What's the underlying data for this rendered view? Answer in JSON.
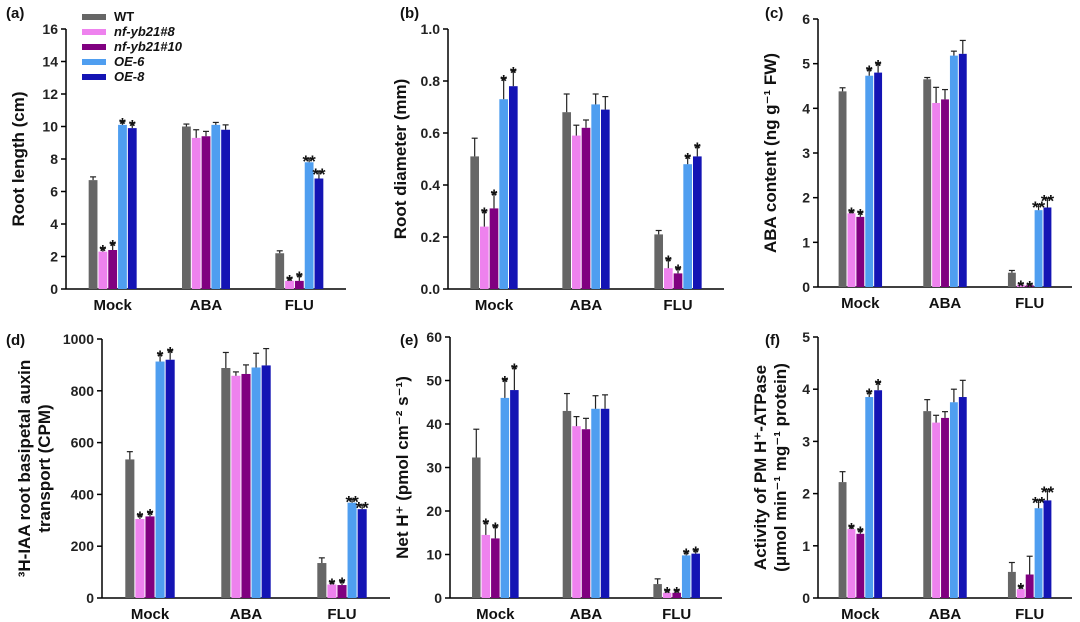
{
  "figure": {
    "groups": [
      "Mock",
      "ABA",
      "FLU"
    ],
    "legend": [
      {
        "name": "WT",
        "color": "#666666",
        "italic": false
      },
      {
        "name": "nf-yb21#8",
        "color": "#ee82ee",
        "italic": true
      },
      {
        "name": "nf-yb21#10",
        "color": "#800080",
        "italic": true
      },
      {
        "name": "OE-6",
        "color": "#4f9ef0",
        "italic": true
      },
      {
        "name": "OE-8",
        "color": "#1414b4",
        "italic": true
      }
    ]
  },
  "chart_data": [
    {
      "panel": "(a)",
      "type": "bar",
      "ylabel": [
        "Root length (cm)"
      ],
      "ylim": [
        0,
        16
      ],
      "yticks": [
        0,
        2,
        4,
        6,
        8,
        10,
        12,
        14,
        16
      ],
      "categories": [
        "Mock",
        "ABA",
        "FLU"
      ],
      "series": [
        {
          "name": "WT",
          "values": [
            6.7,
            10.0,
            2.2
          ],
          "errors": [
            0.2,
            0.15,
            0.15
          ],
          "sig": [
            "",
            "",
            ""
          ]
        },
        {
          "name": "nf-yb21#8",
          "values": [
            2.3,
            9.3,
            0.5
          ],
          "errors": [
            0.2,
            0.5,
            0.15
          ],
          "sig": [
            "*",
            "",
            "*"
          ]
        },
        {
          "name": "nf-yb21#10",
          "values": [
            2.4,
            9.4,
            0.5
          ],
          "errors": [
            0.4,
            0.3,
            0.35
          ],
          "sig": [
            "*",
            "",
            "*"
          ]
        },
        {
          "name": "OE-6",
          "values": [
            10.1,
            10.1,
            7.8
          ],
          "errors": [
            0.2,
            0.15,
            0.2
          ],
          "sig": [
            "*",
            "",
            "**"
          ]
        },
        {
          "name": "OE-8",
          "values": [
            9.9,
            9.8,
            6.8
          ],
          "errors": [
            0.3,
            0.3,
            0.4
          ],
          "sig": [
            "*",
            "",
            "**"
          ]
        }
      ]
    },
    {
      "panel": "(b)",
      "type": "bar",
      "ylabel": [
        "Root diameter (mm)"
      ],
      "ylim": [
        0,
        1.0
      ],
      "yticks": [
        0.0,
        0.2,
        0.4,
        0.6,
        0.8,
        1.0
      ],
      "categories": [
        "Mock",
        "ABA",
        "FLU"
      ],
      "series": [
        {
          "name": "WT",
          "values": [
            0.51,
            0.68,
            0.21
          ],
          "errors": [
            0.07,
            0.07,
            0.015
          ],
          "sig": [
            "",
            "",
            ""
          ]
        },
        {
          "name": "nf-yb21#8",
          "values": [
            0.24,
            0.59,
            0.08
          ],
          "errors": [
            0.06,
            0.04,
            0.035
          ],
          "sig": [
            "*",
            "",
            "*"
          ]
        },
        {
          "name": "nf-yb21#10",
          "values": [
            0.31,
            0.62,
            0.06
          ],
          "errors": [
            0.06,
            0.03,
            0.02
          ],
          "sig": [
            "*",
            "",
            "*"
          ]
        },
        {
          "name": "OE-6",
          "values": [
            0.73,
            0.71,
            0.48
          ],
          "errors": [
            0.08,
            0.04,
            0.03
          ],
          "sig": [
            "*",
            "",
            "*"
          ]
        },
        {
          "name": "OE-8",
          "values": [
            0.78,
            0.69,
            0.51
          ],
          "errors": [
            0.06,
            0.05,
            0.04
          ],
          "sig": [
            "*",
            "",
            "*"
          ]
        }
      ]
    },
    {
      "panel": "(c)",
      "type": "bar",
      "ylabel": [
        "ABA content (ng g⁻¹ FW)"
      ],
      "ylim": [
        0,
        6
      ],
      "yticks": [
        0,
        1,
        2,
        3,
        4,
        5,
        6
      ],
      "categories": [
        "Mock",
        "ABA",
        "FLU"
      ],
      "series": [
        {
          "name": "WT",
          "values": [
            4.38,
            4.65,
            0.32
          ],
          "errors": [
            0.08,
            0.04,
            0.05
          ],
          "sig": [
            "",
            "",
            ""
          ]
        },
        {
          "name": "nf-yb21#8",
          "values": [
            1.65,
            4.12,
            0.05
          ],
          "errors": [
            0.05,
            0.35,
            0.02
          ],
          "sig": [
            "*",
            "",
            "*"
          ]
        },
        {
          "name": "nf-yb21#10",
          "values": [
            1.57,
            4.2,
            0.04
          ],
          "errors": [
            0.1,
            0.22,
            0.02
          ],
          "sig": [
            "*",
            "",
            "*"
          ]
        },
        {
          "name": "OE-6",
          "values": [
            4.73,
            5.18,
            1.72
          ],
          "errors": [
            0.15,
            0.1,
            0.12
          ],
          "sig": [
            "*",
            "",
            "**"
          ]
        },
        {
          "name": "OE-8",
          "values": [
            4.8,
            5.22,
            1.78
          ],
          "errors": [
            0.2,
            0.3,
            0.2
          ],
          "sig": [
            "*",
            "",
            "**"
          ]
        }
      ]
    },
    {
      "panel": "(d)",
      "type": "bar",
      "ylabel": [
        "³H-IAA root basipetal auxin",
        "transport (CPM)"
      ],
      "ylim": [
        0,
        1000
      ],
      "yticks": [
        0,
        200,
        400,
        600,
        800,
        1000
      ],
      "categories": [
        "Mock",
        "ABA",
        "FLU"
      ],
      "series": [
        {
          "name": "WT",
          "values": [
            535,
            888,
            135
          ],
          "errors": [
            30,
            60,
            20
          ],
          "sig": [
            "",
            "",
            ""
          ]
        },
        {
          "name": "nf-yb21#8",
          "values": [
            305,
            858,
            52
          ],
          "errors": [
            15,
            15,
            10
          ],
          "sig": [
            "*",
            "",
            "*"
          ]
        },
        {
          "name": "nf-yb21#10",
          "values": [
            315,
            865,
            50
          ],
          "errors": [
            15,
            35,
            15
          ],
          "sig": [
            "*",
            "",
            "*"
          ]
        },
        {
          "name": "OE-6",
          "values": [
            913,
            890,
            368
          ],
          "errors": [
            30,
            55,
            12
          ],
          "sig": [
            "*",
            "",
            "**"
          ]
        },
        {
          "name": "OE-8",
          "values": [
            920,
            898,
            343
          ],
          "errors": [
            35,
            65,
            15
          ],
          "sig": [
            "*",
            "",
            "**"
          ]
        }
      ]
    },
    {
      "panel": "(e)",
      "type": "bar",
      "ylabel": [
        "Net H⁺ (pmol cm⁻² s⁻¹)"
      ],
      "ylim": [
        0,
        60
      ],
      "yticks": [
        0,
        10,
        20,
        30,
        40,
        50,
        60
      ],
      "categories": [
        "Mock",
        "ABA",
        "FLU"
      ],
      "series": [
        {
          "name": "WT",
          "values": [
            32.3,
            43.0,
            3.2
          ],
          "errors": [
            6.5,
            4.0,
            1.2
          ],
          "sig": [
            "",
            "",
            ""
          ]
        },
        {
          "name": "nf-yb21#8",
          "values": [
            14.5,
            39.5,
            1.2
          ],
          "errors": [
            3.0,
            2.2,
            0.5
          ],
          "sig": [
            "*",
            "",
            "*"
          ]
        },
        {
          "name": "nf-yb21#10",
          "values": [
            13.7,
            38.8,
            1.2
          ],
          "errors": [
            2.8,
            2.5,
            0.5
          ],
          "sig": [
            "*",
            "",
            "*"
          ]
        },
        {
          "name": "OE-6",
          "values": [
            46.0,
            43.5,
            9.8
          ],
          "errors": [
            4.2,
            3.0,
            0.8
          ],
          "sig": [
            "*",
            "",
            "*"
          ]
        },
        {
          "name": "OE-8",
          "values": [
            47.8,
            43.5,
            10.2
          ],
          "errors": [
            5.3,
            3.2,
            0.8
          ],
          "sig": [
            "*",
            "",
            "*"
          ]
        }
      ]
    },
    {
      "panel": "(f)",
      "type": "bar",
      "ylabel": [
        "Activity of PM H⁺-ATPase",
        "(μmol min⁻¹ mg⁻¹ protein)"
      ],
      "ylim": [
        0,
        5
      ],
      "yticks": [
        0,
        1,
        2,
        3,
        4,
        5
      ],
      "categories": [
        "Mock",
        "ABA",
        "FLU"
      ],
      "series": [
        {
          "name": "WT",
          "values": [
            2.22,
            3.58,
            0.5
          ],
          "errors": [
            0.2,
            0.22,
            0.18
          ],
          "sig": [
            "",
            "",
            ""
          ]
        },
        {
          "name": "nf-yb21#8",
          "values": [
            1.32,
            3.36,
            0.17
          ],
          "errors": [
            0.05,
            0.14,
            0.05
          ],
          "sig": [
            "*",
            "",
            "*"
          ]
        },
        {
          "name": "nf-yb21#10",
          "values": [
            1.23,
            3.45,
            0.45
          ],
          "errors": [
            0.07,
            0.12,
            0.35
          ],
          "sig": [
            "*",
            "",
            ""
          ]
        },
        {
          "name": "OE-6",
          "values": [
            3.85,
            3.75,
            1.72
          ],
          "errors": [
            0.1,
            0.25,
            0.15
          ],
          "sig": [
            "*",
            "",
            "**"
          ]
        },
        {
          "name": "OE-8",
          "values": [
            3.98,
            3.85,
            1.87
          ],
          "errors": [
            0.15,
            0.32,
            0.2
          ],
          "sig": [
            "*",
            "",
            "**"
          ]
        }
      ]
    }
  ]
}
